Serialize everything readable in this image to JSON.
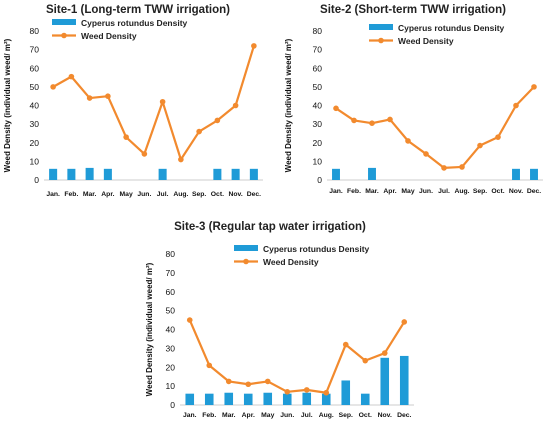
{
  "chart_data": [
    {
      "type": "bar",
      "title": "Site-1 (Long-term TWW irrigation)",
      "ylabel": "Weed Density (individual weed/ m²)",
      "xlabel": "",
      "categories": [
        "Jan.",
        "Feb.",
        "Mar.",
        "Apr.",
        "May",
        "Jun.",
        "Jul.",
        "Aug.",
        "Sep.",
        "Oct.",
        "Nov.",
        "Dec."
      ],
      "yticks": [
        "0",
        "10",
        "20",
        "30",
        "40",
        "50",
        "60",
        "70",
        "80"
      ],
      "ylim": [
        0,
        80
      ],
      "grid": false,
      "legend_position": "top-left",
      "series": [
        {
          "name": "Cyperus rotundus Density",
          "kind": "bar",
          "color": "#1f9bd7",
          "values": [
            6,
            6,
            6.5,
            6,
            0,
            0,
            6,
            0,
            0,
            6,
            6,
            6
          ]
        },
        {
          "name": "Weed Density",
          "kind": "line",
          "color": "#f28a2e",
          "values": [
            50,
            55.5,
            44,
            45,
            23,
            14,
            42,
            11,
            26,
            32,
            40,
            72
          ]
        }
      ]
    },
    {
      "type": "bar",
      "title": "Site-2 (Short-term TWW irrigation)",
      "ylabel": "Weed Density (individual weed/ m²)",
      "xlabel": "",
      "categories": [
        "Jan.",
        "Feb.",
        "Mar.",
        "Apr.",
        "May",
        "Jun.",
        "Jul.",
        "Aug.",
        "Sep.",
        "Oct.",
        "Nov.",
        "Dec."
      ],
      "yticks": [
        "0",
        "10",
        "20",
        "30",
        "40",
        "50",
        "60",
        "70",
        "80"
      ],
      "ylim": [
        0,
        80
      ],
      "grid": false,
      "legend_position": "top-left",
      "series": [
        {
          "name": "Cyperus rotundus Density",
          "kind": "bar",
          "color": "#1f9bd7",
          "values": [
            6,
            0,
            6.5,
            0,
            0,
            0,
            0,
            0,
            0,
            0,
            6,
            6
          ]
        },
        {
          "name": "Weed Density",
          "kind": "line",
          "color": "#f28a2e",
          "values": [
            38.5,
            32,
            30.5,
            32.5,
            21,
            14,
            6.5,
            7,
            18.5,
            23,
            40,
            50
          ]
        }
      ]
    },
    {
      "type": "bar",
      "title": "Site-3 (Regular tap water irrigation)",
      "ylabel": "Weed Density (individual weed/ m²)",
      "xlabel": "",
      "categories": [
        "Jan.",
        "Feb.",
        "Mar.",
        "Apr.",
        "May",
        "Jun.",
        "Jul.",
        "Aug.",
        "Sep.",
        "Oct.",
        "Nov.",
        "Dec."
      ],
      "yticks": [
        "0",
        "10",
        "20",
        "30",
        "40",
        "50",
        "60",
        "70",
        "80"
      ],
      "ylim": [
        0,
        80
      ],
      "grid": false,
      "legend_position": "top-left",
      "series": [
        {
          "name": "Cyperus rotundus Density",
          "kind": "bar",
          "color": "#1f9bd7",
          "values": [
            6,
            6,
            6.5,
            6,
            6.5,
            6,
            6.5,
            6,
            13,
            6,
            25,
            26
          ]
        },
        {
          "name": "Weed Density",
          "kind": "line",
          "color": "#f28a2e",
          "values": [
            45,
            21,
            12.5,
            11,
            12.5,
            7,
            8,
            6.5,
            32,
            23.5,
            27.5,
            44
          ]
        }
      ]
    }
  ]
}
